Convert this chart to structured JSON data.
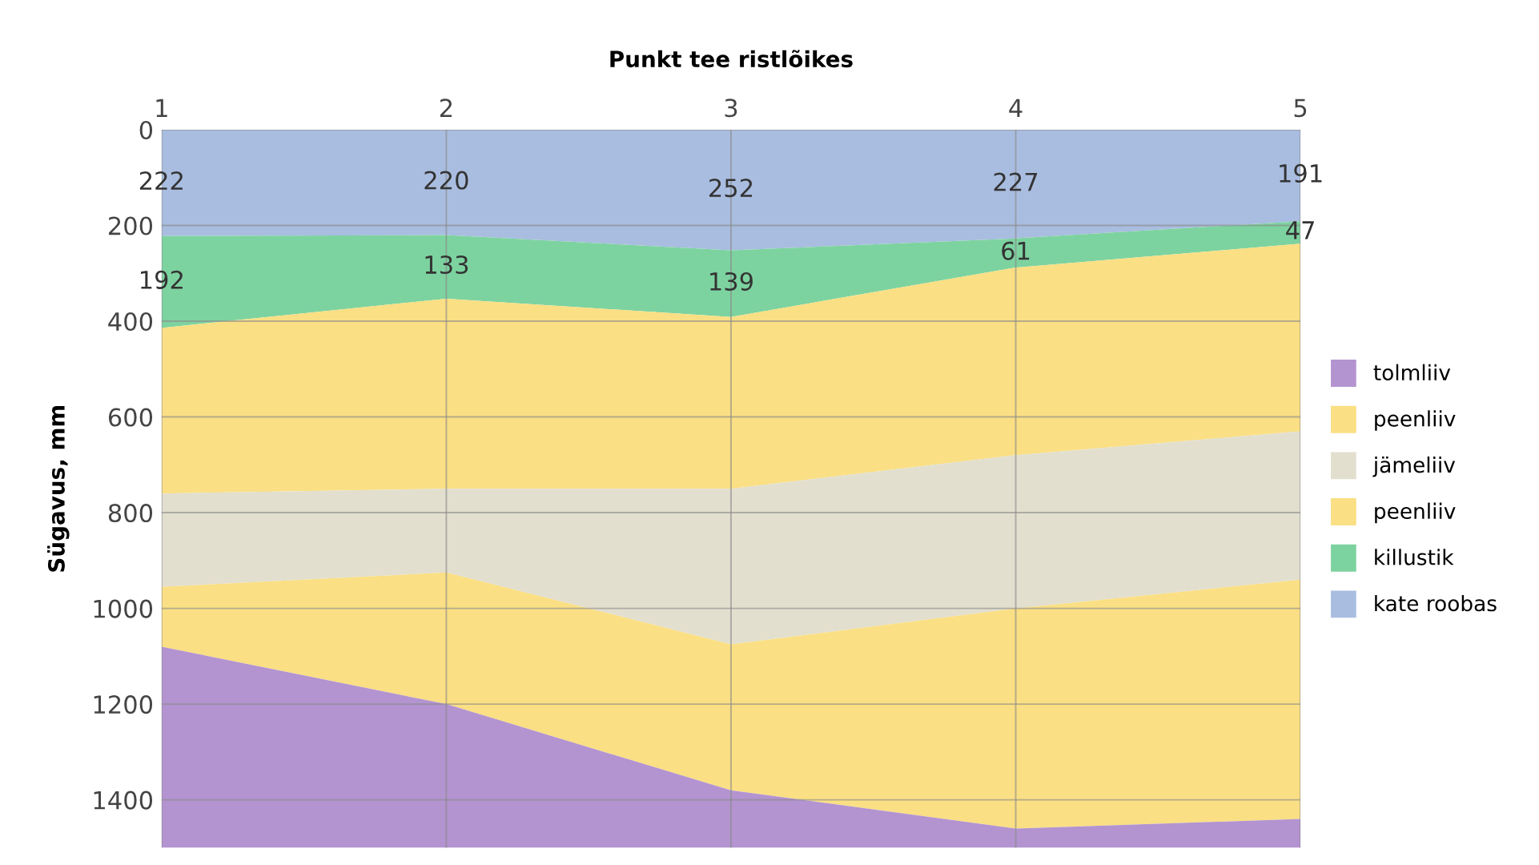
{
  "chart_data": {
    "type": "area",
    "stacked": true,
    "xlabel": "Punkt tee ristlõikes",
    "ylabel": "Sügavus, mm",
    "x": [
      1,
      2,
      3,
      4,
      5
    ],
    "xlim": [
      1,
      5
    ],
    "xticks": [
      1,
      2,
      3,
      4,
      5
    ],
    "ylim": [
      1500,
      0
    ],
    "yticks": [
      0,
      200,
      400,
      600,
      800,
      1000,
      1200,
      1400
    ],
    "grid": true,
    "legend": "right",
    "series": [
      {
        "name": "kate roobas",
        "color": "#a9bde0",
        "values": [
          222,
          220,
          252,
          227,
          191
        ],
        "value_labels": [
          "222",
          "220",
          "252",
          "227",
          "191"
        ]
      },
      {
        "name": "killustik",
        "color": "#7dd3a0",
        "values": [
          192,
          133,
          139,
          61,
          47
        ],
        "value_labels": [
          "192",
          "133",
          "139",
          "61",
          "47"
        ]
      },
      {
        "name": "peenliiv",
        "color": "#fadf84",
        "values": [
          346,
          397,
          359,
          392,
          392
        ]
      },
      {
        "name": "jämeliiv",
        "color": "#e2dfcf",
        "values": [
          195,
          175,
          325,
          320,
          310
        ]
      },
      {
        "name": "peenliiv",
        "color": "#fadf84",
        "values": [
          125,
          275,
          305,
          460,
          500
        ]
      },
      {
        "name": "tolmliiv",
        "color": "#b394d0",
        "values": [
          420,
          300,
          120,
          40,
          60
        ]
      }
    ]
  }
}
